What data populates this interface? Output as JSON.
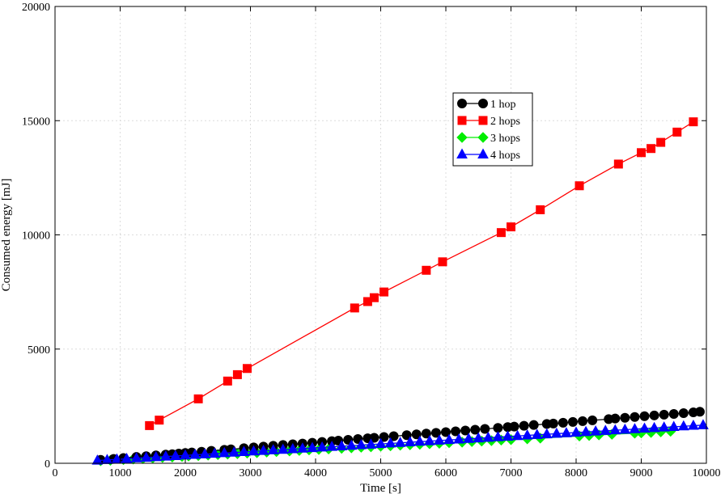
{
  "chart_data": {
    "type": "line",
    "xlabel": "Time [s]",
    "ylabel": "Consumed energy [mJ]",
    "xlim": [
      0,
      10000
    ],
    "ylim": [
      0,
      20000
    ],
    "x_ticks": [
      0,
      1000,
      2000,
      3000,
      4000,
      5000,
      6000,
      7000,
      8000,
      9000,
      10000
    ],
    "y_ticks": [
      0,
      5000,
      10000,
      15000,
      20000
    ],
    "grid": true,
    "legend_position": "upper-right-center",
    "series": [
      {
        "name": "1 hop",
        "color": "#000000",
        "marker": "circle",
        "x": [
          700,
          900,
          1050,
          1250,
          1400,
          1550,
          1700,
          1800,
          1900,
          2000,
          2100,
          2250,
          2400,
          2600,
          2700,
          2900,
          3050,
          3200,
          3350,
          3500,
          3650,
          3800,
          3950,
          4100,
          4250,
          4350,
          4500,
          4650,
          4800,
          4900,
          5050,
          5200,
          5400,
          5550,
          5700,
          5850,
          6000,
          6150,
          6300,
          6450,
          6600,
          6800,
          6950,
          7050,
          7200,
          7350,
          7550,
          7650,
          7800,
          7950,
          8100,
          8250,
          8500,
          8600,
          8750,
          8900,
          9050,
          9200,
          9350,
          9500,
          9650,
          9800,
          9900
        ],
        "y": [
          150,
          190,
          230,
          280,
          310,
          345,
          380,
          400,
          425,
          450,
          475,
          505,
          545,
          590,
          610,
          660,
          695,
          730,
          765,
          800,
          830,
          865,
          900,
          935,
          970,
          990,
          1025,
          1060,
          1095,
          1115,
          1150,
          1185,
          1230,
          1265,
          1300,
          1330,
          1365,
          1400,
          1435,
          1470,
          1505,
          1550,
          1585,
          1605,
          1640,
          1675,
          1720,
          1740,
          1775,
          1810,
          1845,
          1880,
          1935,
          1960,
          1990,
          2025,
          2060,
          2095,
          2130,
          2160,
          2195,
          2230,
          2255
        ]
      },
      {
        "name": "2 hops",
        "color": "#ff0000",
        "marker": "square",
        "x": [
          1450,
          1600,
          2200,
          2650,
          2800,
          2950,
          4600,
          4800,
          4900,
          5050,
          5700,
          5950,
          6850,
          7000,
          7450,
          8050,
          8650,
          9000,
          9150,
          9300,
          9550,
          9800
        ],
        "y": [
          1650,
          1890,
          2820,
          3600,
          3880,
          4150,
          6800,
          7080,
          7250,
          7500,
          8450,
          8820,
          10100,
          10350,
          11100,
          12150,
          13100,
          13600,
          13780,
          14050,
          14500,
          14950
        ]
      },
      {
        "name": "3 hops",
        "color": "#00ee00",
        "marker": "diamond",
        "x": [
          700,
          850,
          1050,
          1200,
          1350,
          1500,
          1650,
          1800,
          1950,
          2050,
          2200,
          2350,
          2500,
          2650,
          2800,
          2950,
          3100,
          3250,
          3400,
          3600,
          3750,
          3900,
          4050,
          4200,
          4400,
          4550,
          4700,
          4850,
          5000,
          5150,
          5300,
          5450,
          5600,
          5750,
          5900,
          6050,
          6250,
          6400,
          6550,
          6700,
          6850,
          7000,
          7250,
          7450,
          8050,
          8200,
          8350,
          8550,
          8900,
          9000,
          9150,
          9300,
          9450
        ],
        "y": [
          110,
          130,
          160,
          185,
          205,
          230,
          255,
          275,
          300,
          315,
          335,
          355,
          380,
          400,
          420,
          445,
          465,
          490,
          510,
          540,
          560,
          585,
          605,
          625,
          655,
          675,
          700,
          720,
          745,
          765,
          790,
          810,
          830,
          855,
          875,
          900,
          925,
          950,
          970,
          990,
          1015,
          1035,
          1070,
          1100,
          1195,
          1215,
          1240,
          1270,
          1315,
          1330,
          1350,
          1375,
          1400
        ]
      },
      {
        "name": "4 hops",
        "color": "#0000ff",
        "marker": "triangle",
        "x": [
          650,
          800,
          950,
          1100,
          1250,
          1400,
          1550,
          1700,
          1850,
          2000,
          2150,
          2300,
          2450,
          2600,
          2750,
          2900,
          3050,
          3200,
          3350,
          3500,
          3650,
          3800,
          3950,
          4100,
          4250,
          4400,
          4550,
          4700,
          4850,
          5000,
          5150,
          5300,
          5450,
          5600,
          5750,
          5900,
          6050,
          6200,
          6350,
          6500,
          6650,
          6800,
          6950,
          7100,
          7250,
          7400,
          7550,
          7700,
          7850,
          8000,
          8150,
          8300,
          8450,
          8600,
          8750,
          8900,
          9050,
          9200,
          9350,
          9500,
          9650,
          9800,
          9950
        ],
        "y": [
          120,
          145,
          170,
          195,
          220,
          245,
          270,
          295,
          320,
          345,
          370,
          395,
          420,
          445,
          470,
          495,
          520,
          545,
          570,
          595,
          620,
          645,
          670,
          695,
          720,
          745,
          770,
          795,
          820,
          845,
          870,
          895,
          920,
          945,
          970,
          995,
          1020,
          1045,
          1070,
          1095,
          1120,
          1145,
          1170,
          1195,
          1220,
          1245,
          1270,
          1295,
          1320,
          1345,
          1370,
          1395,
          1420,
          1445,
          1470,
          1495,
          1520,
          1545,
          1570,
          1595,
          1620,
          1645,
          1670
        ]
      }
    ]
  }
}
